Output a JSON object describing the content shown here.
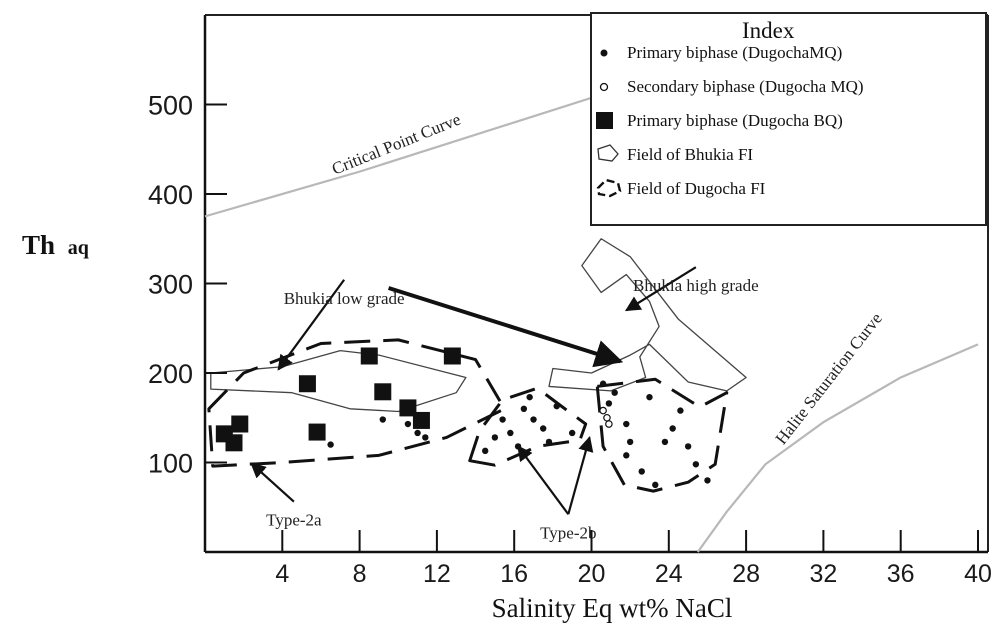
{
  "chart_data": {
    "type": "scatter",
    "xlabel": "Salinity Eq wt% NaCl",
    "ylabel": "Th",
    "ylabel_sub": "aq",
    "x_ticks": [
      4,
      8,
      12,
      16,
      20,
      24,
      28,
      32,
      36,
      40
    ],
    "y_ticks": [
      100,
      200,
      300,
      400,
      500
    ],
    "xlim": [
      0,
      40
    ],
    "ylim": [
      0,
      600
    ],
    "grid": false,
    "legend": {
      "title": "Index",
      "placement": "top-right",
      "items": [
        {
          "marker": "filled-dot",
          "label": "Primary biphase (DugochaMQ)"
        },
        {
          "marker": "open-dot",
          "label": "Secondary biphase (Dugocha MQ)"
        },
        {
          "marker": "filled-square",
          "label": "Primary biphase (Dugocha BQ)"
        },
        {
          "marker": "solid-outline",
          "label": "Field of Bhukia FI"
        },
        {
          "marker": "dashed-outline",
          "label": "Field of Dugocha FI"
        }
      ]
    },
    "series": [
      {
        "name": "Primary biphase (Dugocha BQ)",
        "marker": "filled-square",
        "points": [
          {
            "x": 1.0,
            "y": 132
          },
          {
            "x": 1.5,
            "y": 122
          },
          {
            "x": 1.8,
            "y": 143
          },
          {
            "x": 5.3,
            "y": 188
          },
          {
            "x": 5.8,
            "y": 134
          },
          {
            "x": 8.5,
            "y": 219
          },
          {
            "x": 9.2,
            "y": 179
          },
          {
            "x": 10.5,
            "y": 161
          },
          {
            "x": 11.2,
            "y": 147
          },
          {
            "x": 12.8,
            "y": 219
          }
        ]
      },
      {
        "name": "Primary biphase (DugochaMQ)",
        "marker": "filled-dot",
        "points": [
          {
            "x": 6.5,
            "y": 120
          },
          {
            "x": 9.2,
            "y": 148
          },
          {
            "x": 10.5,
            "y": 143
          },
          {
            "x": 11.0,
            "y": 133
          },
          {
            "x": 11.4,
            "y": 128
          },
          {
            "x": 14.5,
            "y": 113
          },
          {
            "x": 15.0,
            "y": 128
          },
          {
            "x": 15.4,
            "y": 148
          },
          {
            "x": 15.8,
            "y": 133
          },
          {
            "x": 16.2,
            "y": 118
          },
          {
            "x": 16.5,
            "y": 160
          },
          {
            "x": 16.8,
            "y": 173
          },
          {
            "x": 17.0,
            "y": 148
          },
          {
            "x": 17.5,
            "y": 138
          },
          {
            "x": 17.8,
            "y": 123
          },
          {
            "x": 18.2,
            "y": 163
          },
          {
            "x": 19.0,
            "y": 133
          },
          {
            "x": 20.6,
            "y": 188
          },
          {
            "x": 21.2,
            "y": 178
          },
          {
            "x": 20.9,
            "y": 166
          },
          {
            "x": 21.8,
            "y": 143
          },
          {
            "x": 22.0,
            "y": 123
          },
          {
            "x": 21.8,
            "y": 108
          },
          {
            "x": 22.6,
            "y": 90
          },
          {
            "x": 23.3,
            "y": 75
          },
          {
            "x": 23.8,
            "y": 123
          },
          {
            "x": 24.2,
            "y": 138
          },
          {
            "x": 24.6,
            "y": 158
          },
          {
            "x": 25.0,
            "y": 118
          },
          {
            "x": 25.4,
            "y": 98
          },
          {
            "x": 26.0,
            "y": 80
          },
          {
            "x": 23.0,
            "y": 173
          }
        ]
      },
      {
        "name": "Secondary biphase (Dugocha MQ)",
        "marker": "open-dot",
        "points": [
          {
            "x": 20.6,
            "y": 158
          },
          {
            "x": 20.8,
            "y": 150
          },
          {
            "x": 20.9,
            "y": 143
          }
        ]
      }
    ],
    "curves": [
      {
        "name": "Critical Point Curve",
        "style": "thin-gray",
        "points": [
          [
            0,
            375
          ],
          [
            8,
            425
          ],
          [
            16,
            480
          ],
          [
            24,
            535
          ],
          [
            29,
            570
          ]
        ]
      },
      {
        "name": "Halite Saturation Curve",
        "style": "thin-gray",
        "points": [
          [
            25.5,
            0
          ],
          [
            27,
            45
          ],
          [
            29,
            98
          ],
          [
            32,
            145
          ],
          [
            36,
            195
          ],
          [
            40,
            232
          ]
        ]
      }
    ],
    "fields": [
      {
        "name": "Field of Bhukia FI",
        "region": "Bhukia low grade",
        "style": "solid",
        "points": [
          [
            0.3,
            200
          ],
          [
            4,
            207
          ],
          [
            7,
            225
          ],
          [
            9,
            220
          ],
          [
            13.5,
            195
          ],
          [
            13,
            178
          ],
          [
            10,
            157
          ],
          [
            7.5,
            160
          ],
          [
            4.5,
            178
          ],
          [
            0.3,
            182
          ]
        ]
      },
      {
        "name": "Field of Bhukia FI",
        "region": "Bhukia high grade",
        "style": "solid",
        "points": [
          [
            19.5,
            320
          ],
          [
            20.5,
            350
          ],
          [
            22,
            330
          ],
          [
            24.5,
            260
          ],
          [
            28,
            195
          ],
          [
            27,
            180
          ],
          [
            25,
            190
          ],
          [
            23,
            232
          ],
          [
            22,
            220
          ],
          [
            20,
            200
          ],
          [
            18,
            205
          ],
          [
            17.8,
            185
          ],
          [
            21,
            180
          ],
          [
            22.8,
            195
          ],
          [
            22.5,
            218
          ],
          [
            23.5,
            252
          ],
          [
            23,
            280
          ],
          [
            21.8,
            310
          ],
          [
            20.5,
            290
          ]
        ]
      },
      {
        "name": "Field of Dugocha FI",
        "region": "Type-2a",
        "style": "dashed",
        "points": [
          [
            0.2,
            160
          ],
          [
            2,
            200
          ],
          [
            6,
            233
          ],
          [
            10,
            237
          ],
          [
            14,
            215
          ],
          [
            15.5,
            160
          ],
          [
            12.5,
            128
          ],
          [
            9,
            108
          ],
          [
            4,
            100
          ],
          [
            0.4,
            96
          ]
        ]
      },
      {
        "name": "Field of Dugocha FI",
        "region": "Type-2b (left)",
        "style": "dashed",
        "points": [
          [
            13.7,
            102
          ],
          [
            14.2,
            135
          ],
          [
            15.4,
            170
          ],
          [
            17.2,
            183
          ],
          [
            18.5,
            162
          ],
          [
            19.7,
            143
          ],
          [
            19.4,
            125
          ],
          [
            17.2,
            118
          ],
          [
            15,
            97
          ]
        ]
      },
      {
        "name": "Field of Dugocha FI",
        "region": "Type-2b (right)",
        "style": "dashed",
        "points": [
          [
            20.3,
            185
          ],
          [
            23.3,
            193
          ],
          [
            25.6,
            162
          ],
          [
            27,
            178
          ],
          [
            26.4,
            98
          ],
          [
            25,
            78
          ],
          [
            23.2,
            68
          ],
          [
            21.7,
            75
          ],
          [
            20.6,
            118
          ]
        ]
      }
    ],
    "annotations": [
      {
        "text": "Critical Point Curve",
        "at": [
          10,
          450
        ],
        "angle": -22
      },
      {
        "text": "Bhukia low grade",
        "at": [
          7.2,
          293
        ],
        "arrow_to": [
          3.8,
          204
        ]
      },
      {
        "text": "Bhukia high grade",
        "at": [
          25.4,
          307
        ],
        "arrow_to": [
          21.8,
          270
        ]
      },
      {
        "text": "Halite Saturation Curve",
        "at": [
          32.5,
          190
        ],
        "angle": -52
      },
      {
        "text": "Type-2a",
        "at": [
          4.6,
          45
        ],
        "arrow_to": [
          2.4,
          99
        ]
      },
      {
        "text": "Type-2b",
        "at": [
          18.8,
          31
        ],
        "arrow_to": [
          16.2,
          118
        ]
      },
      {
        "text": "Type-2b",
        "at": [
          18.8,
          31
        ],
        "arrow_to": [
          19.9,
          128
        ]
      }
    ],
    "long_arrow": {
      "from": [
        9.5,
        295
      ],
      "to": [
        21.5,
        213
      ]
    }
  }
}
